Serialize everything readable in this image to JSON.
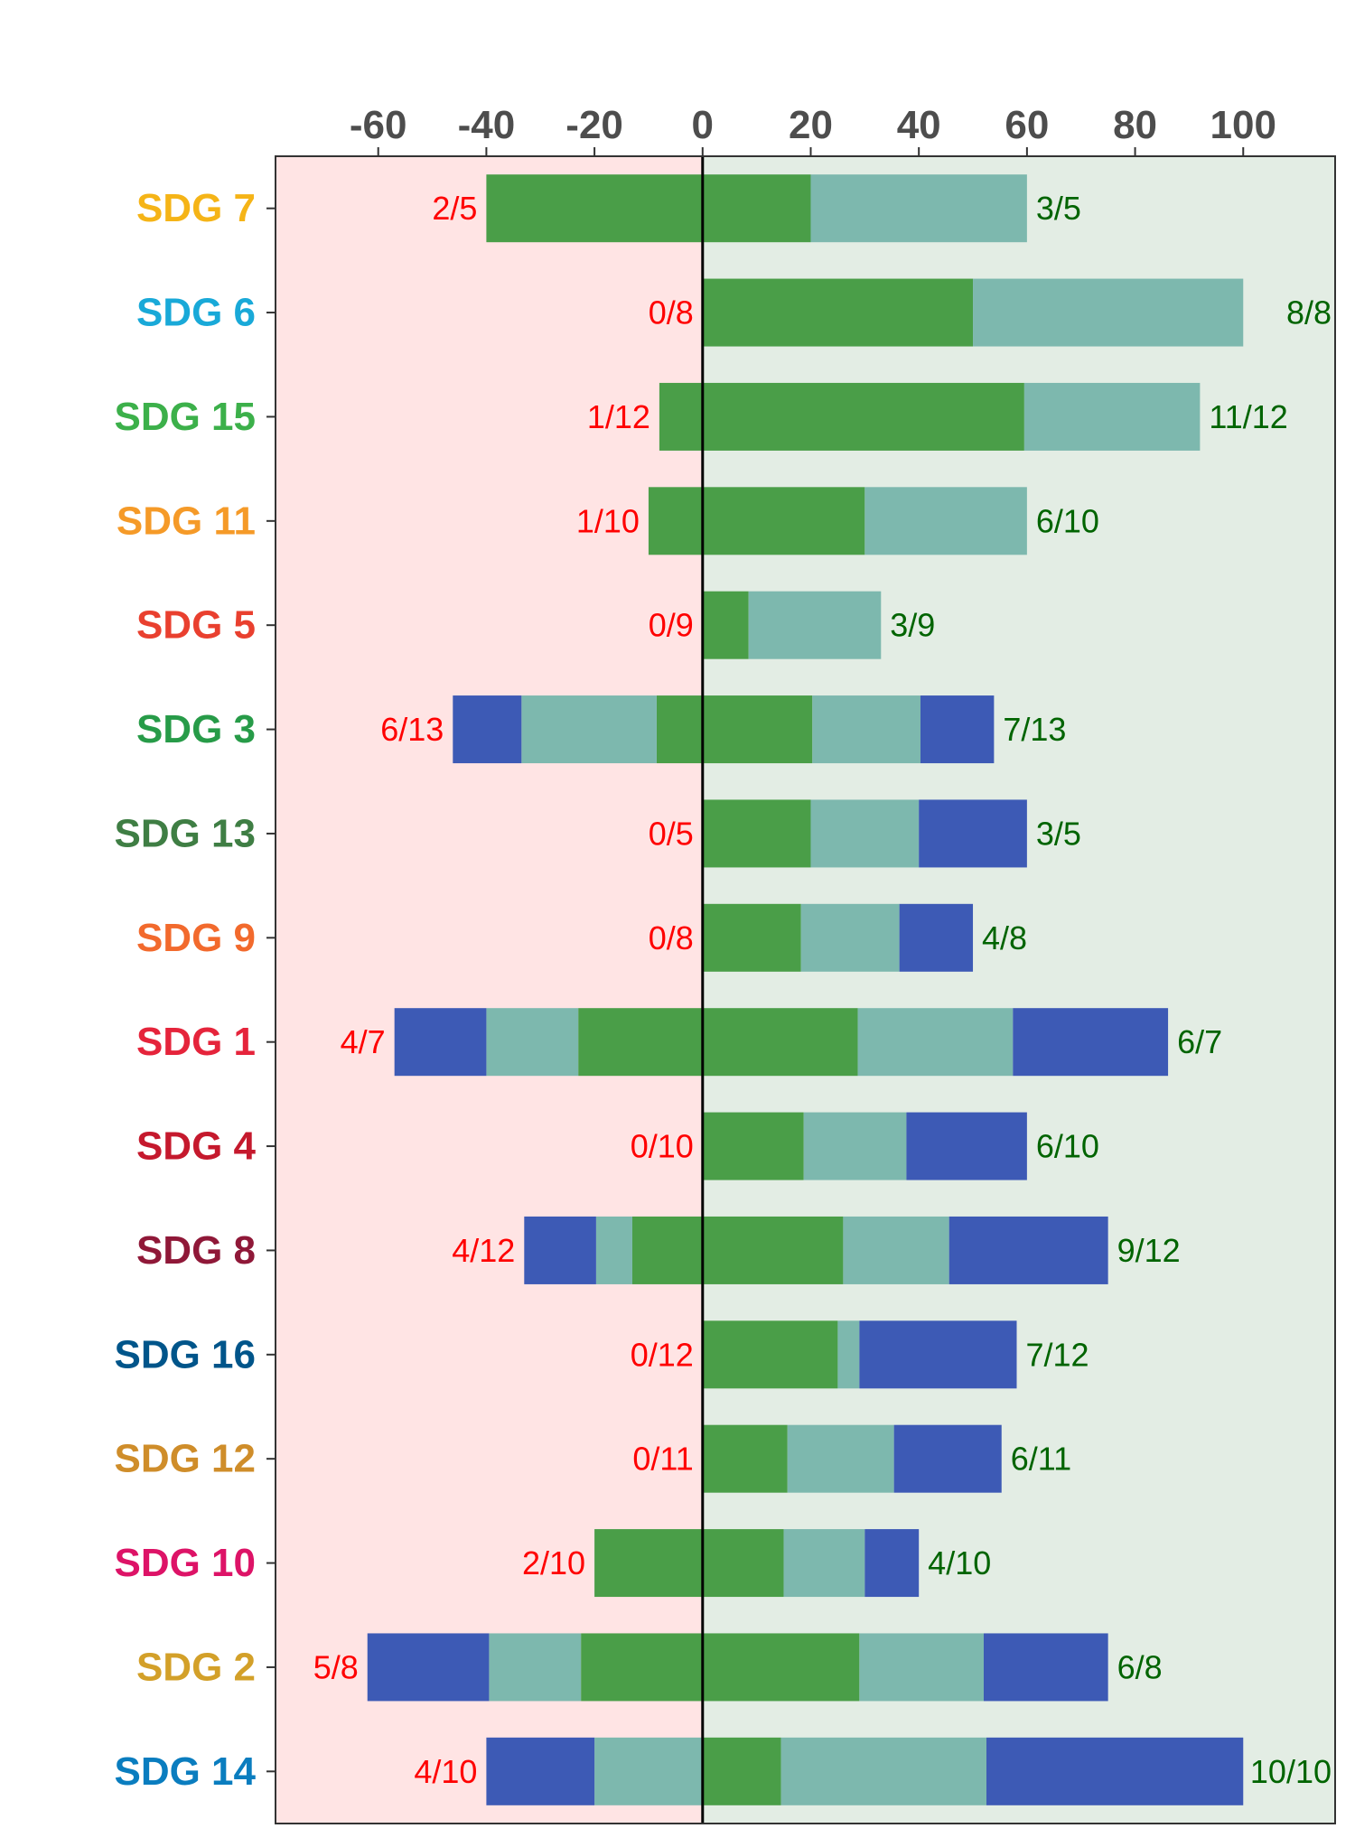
{
  "chart_data": {
    "type": "bar",
    "orientation": "horizontal",
    "stacked": "diverging",
    "xlim": [
      -79,
      117
    ],
    "x_ticks": [
      -60,
      -40,
      -20,
      0,
      20,
      40,
      60,
      80,
      100
    ],
    "x_tick_labels": [
      "-60",
      "-40",
      "-20",
      "0",
      "20",
      "40",
      "60",
      "80",
      "100"
    ],
    "categories": [
      "SDG 7",
      "SDG 6",
      "SDG 15",
      "SDG 11",
      "SDG 5",
      "SDG 3",
      "SDG 13",
      "SDG 9",
      "SDG 1",
      "SDG 4",
      "SDG 8",
      "SDG 16",
      "SDG 12",
      "SDG 10",
      "SDG 2",
      "SDG 14"
    ],
    "category_colors": [
      "#f5b417",
      "#19a9d8",
      "#3cb04a",
      "#f59a28",
      "#e9402f",
      "#279b48",
      "#3f7e44",
      "#f26a2d",
      "#e5243b",
      "#c5192d",
      "#8f1838",
      "#00558a",
      "#cf8d2a",
      "#dd1367",
      "#d3a029",
      "#0a7dbf"
    ],
    "series_colors": [
      "#4a9e48",
      "#7db8ae",
      "#3d5ab5"
    ],
    "negative_series": [
      {
        "values": [
          -40,
          0,
          -8,
          -10,
          0,
          -8.5,
          0,
          0,
          -23,
          0,
          -13,
          0,
          0,
          -20,
          -22.5,
          0
        ]
      },
      {
        "values": [
          0,
          0,
          0,
          0,
          0,
          -25,
          0,
          0,
          -17,
          0,
          -6.7,
          0,
          0,
          0,
          -17,
          -20
        ]
      },
      {
        "values": [
          0,
          0,
          0,
          0,
          0,
          -12.7,
          0,
          0,
          -17,
          0,
          -13.3,
          0,
          0,
          0,
          -22.5,
          -20
        ]
      }
    ],
    "positive_series": [
      {
        "values": [
          20,
          50,
          59.5,
          30,
          8.5,
          20.3,
          20,
          18.2,
          28.7,
          18.7,
          26,
          25,
          15.7,
          15,
          29,
          14.5
        ]
      },
      {
        "values": [
          40,
          50,
          32.5,
          30,
          24.5,
          20,
          20,
          18.2,
          28.7,
          19,
          19.6,
          4,
          19.7,
          15,
          23,
          38
        ]
      },
      {
        "values": [
          0,
          0,
          0,
          0,
          0,
          13.6,
          20,
          13.6,
          28.7,
          22.3,
          29.4,
          29.1,
          19.9,
          10,
          23,
          47.5
        ]
      }
    ],
    "negative_labels": [
      "2/5",
      "0/8",
      "1/12",
      "1/10",
      "0/9",
      "6/13",
      "0/5",
      "0/8",
      "4/7",
      "0/10",
      "4/12",
      "0/12",
      "0/11",
      "2/10",
      "5/8",
      "4/10"
    ],
    "positive_labels": [
      "3/5",
      "8/8",
      "11/12",
      "6/10",
      "3/9",
      "7/13",
      "3/5",
      "4/8",
      "6/7",
      "6/10",
      "9/12",
      "7/12",
      "6/11",
      "4/10",
      "6/8",
      "10/10"
    ],
    "negative_label_color": "#ff0000",
    "positive_label_color": "#006400",
    "negative_panel_color": "#ffe4e4",
    "positive_panel_color": "#e3ede4",
    "title": "",
    "xlabel": "",
    "ylabel": ""
  }
}
